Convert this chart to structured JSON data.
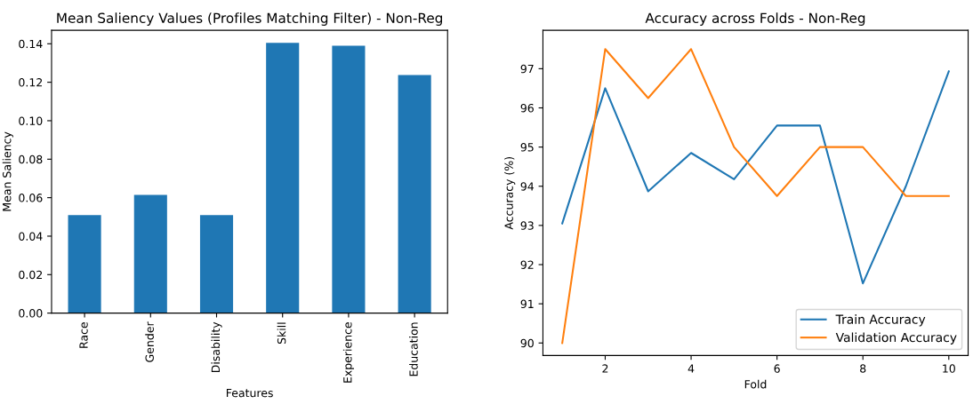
{
  "chart_data": [
    {
      "type": "bar",
      "title": "Mean Saliency Values (Profiles Matching Filter) - Non-Reg",
      "xlabel": "Features",
      "ylabel": "Mean Saliency",
      "categories": [
        "Race",
        "Gender",
        "Disability",
        "Skill",
        "Experience",
        "Education"
      ],
      "values": [
        0.051,
        0.0614,
        0.051,
        0.1405,
        0.139,
        0.1237
      ],
      "color": "#1f77b4",
      "ylim": [
        0,
        0.147
      ],
      "yticks": [
        {
          "value": 0,
          "label": "0.00"
        },
        {
          "value": 0.02,
          "label": "0.02"
        },
        {
          "value": 0.04,
          "label": "0.04"
        },
        {
          "value": 0.06,
          "label": "0.06"
        },
        {
          "value": 0.08,
          "label": "0.08"
        },
        {
          "value": 0.1,
          "label": "0.10"
        },
        {
          "value": 0.12,
          "label": "0.12"
        },
        {
          "value": 0.14,
          "label": "0.14"
        }
      ],
      "grid": false
    },
    {
      "type": "line",
      "title": "Accuracy across Folds - Non-Reg",
      "xlabel": "Fold",
      "ylabel": "Accuracy (%)",
      "x": [
        1,
        2,
        3,
        4,
        5,
        6,
        7,
        8,
        9,
        10
      ],
      "series": [
        {
          "name": "Train Accuracy",
          "color": "#1f77b4",
          "values": [
            93.05,
            96.5,
            93.87,
            94.85,
            94.18,
            95.55,
            95.55,
            91.52,
            94.0,
            96.93
          ]
        },
        {
          "name": "Validation Accuracy",
          "color": "#ff7f0e",
          "values": [
            90.0,
            97.5,
            96.25,
            97.5,
            95.0,
            93.75,
            95.0,
            95.0,
            93.75,
            93.75
          ]
        }
      ],
      "xlim": [
        0.55,
        10.45
      ],
      "xticks": [
        2,
        4,
        6,
        8,
        10
      ],
      "ylim": [
        89.68,
        97.98
      ],
      "yticks": [
        90,
        91,
        92,
        93,
        94,
        95,
        96,
        97
      ],
      "grid": false,
      "legend": "bottom right",
      "marker": "none",
      "line_style": "solid"
    }
  ]
}
